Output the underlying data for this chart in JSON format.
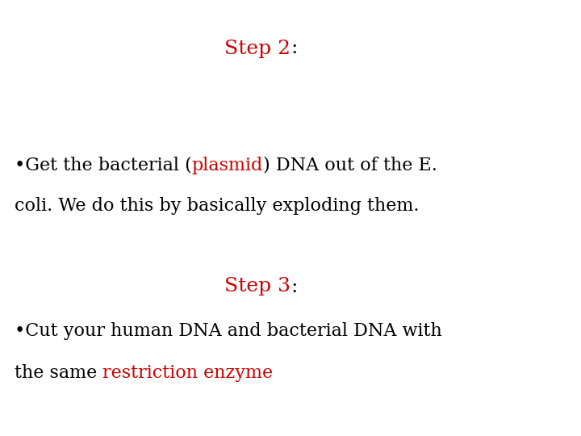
{
  "background_color": "#ffffff",
  "red_color": "#cc0000",
  "black_color": "#000000",
  "step2_label": "Step 2",
  "step2_colon": ":",
  "step3_label": "Step 3",
  "step3_colon": ":",
  "bullet1_seg1": "•Get the bacterial (",
  "bullet1_seg2": "plasmid",
  "bullet1_seg3": ") DNA out of the E.",
  "bullet1_line2": "coli. We do this by basically exploding them.",
  "bullet2_line1": "•Cut your human DNA and bacterial DNA with",
  "bullet2_seg1": "the same ",
  "bullet2_seg2": "restriction enzyme",
  "font_size": 16,
  "title_font_size": 18
}
